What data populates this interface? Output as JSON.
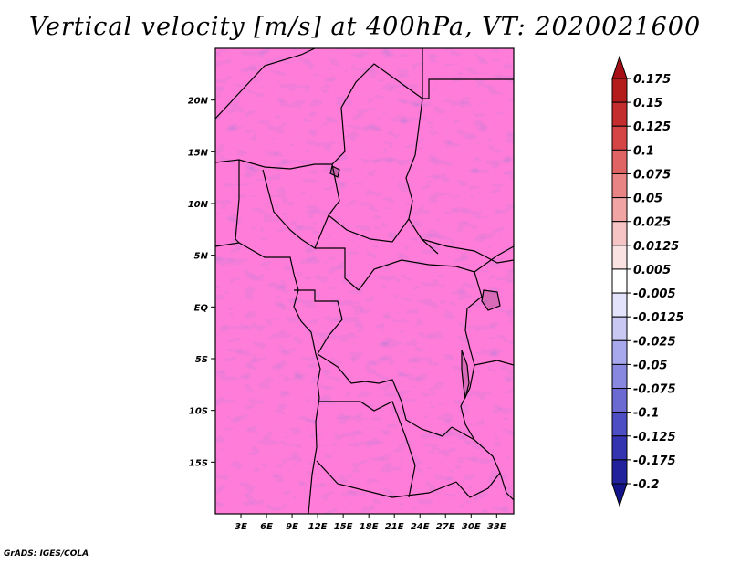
{
  "title": "Vertical velocity [m/s] at 400hPa, VT: 2020021600",
  "credit": "GrADS: IGES/COLA",
  "map": {
    "lon_range": [
      0,
      35
    ],
    "lat_range": [
      -20,
      25
    ],
    "lon_ticks": [
      {
        "value": 3,
        "label": "3E"
      },
      {
        "value": 6,
        "label": "6E"
      },
      {
        "value": 9,
        "label": "9E"
      },
      {
        "value": 12,
        "label": "12E"
      },
      {
        "value": 15,
        "label": "15E"
      },
      {
        "value": 18,
        "label": "18E"
      },
      {
        "value": 21,
        "label": "21E"
      },
      {
        "value": 24,
        "label": "24E"
      },
      {
        "value": 27,
        "label": "27E"
      },
      {
        "value": 30,
        "label": "30E"
      },
      {
        "value": 33,
        "label": "33E"
      }
    ],
    "lat_ticks": [
      {
        "value": 20,
        "label": "20N"
      },
      {
        "value": 15,
        "label": "15N"
      },
      {
        "value": 10,
        "label": "10N"
      },
      {
        "value": 5,
        "label": "5N"
      },
      {
        "value": 0,
        "label": "EQ"
      },
      {
        "value": -5,
        "label": "5S"
      },
      {
        "value": -10,
        "label": "10S"
      },
      {
        "value": -15,
        "label": "15S"
      }
    ]
  },
  "colorbar": {
    "labels": [
      "0.175",
      "0.15",
      "0.125",
      "0.1",
      "0.075",
      "0.05",
      "0.025",
      "0.0125",
      "0.005",
      "-0.005",
      "-0.0125",
      "-0.025",
      "-0.05",
      "-0.075",
      "-0.1",
      "-0.125",
      "-0.175",
      "-0.2"
    ],
    "colors": [
      "#a50f15",
      "#b41b1b",
      "#c42d2d",
      "#d64545",
      "#e06464",
      "#e98484",
      "#f0a4a4",
      "#f6c4c4",
      "#fbe2e2",
      "#ffffff",
      "#e3e3fb",
      "#c8c8f3",
      "#a8a8ec",
      "#8888e0",
      "#6a6ad2",
      "#4e4ec4",
      "#3434b0",
      "#22229c",
      "#14148a"
    ]
  }
}
